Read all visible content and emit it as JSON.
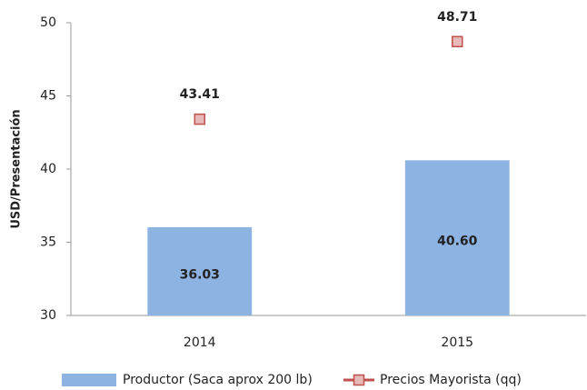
{
  "chart_data": {
    "type": "bar",
    "y_label": "USD/Presentación",
    "categories": [
      "2014",
      "2015"
    ],
    "series": [
      {
        "name": "Productor (Saca aprox 200 lb)",
        "type": "bar",
        "color": "#8db3e2",
        "values": [
          36.03,
          40.6
        ],
        "value_labels": [
          "36.03",
          "40.60"
        ]
      },
      {
        "name": "Precios Mayorista (qq)",
        "type": "scatter",
        "color": "#c0504d",
        "fill": "#e6b9b8",
        "values": [
          43.41,
          48.71
        ],
        "value_labels": [
          "43.41",
          "48.71"
        ]
      }
    ],
    "ylim": [
      30,
      50
    ],
    "yticks": [
      30,
      35,
      40,
      45,
      50
    ],
    "grid": false,
    "legend": "bottom"
  }
}
